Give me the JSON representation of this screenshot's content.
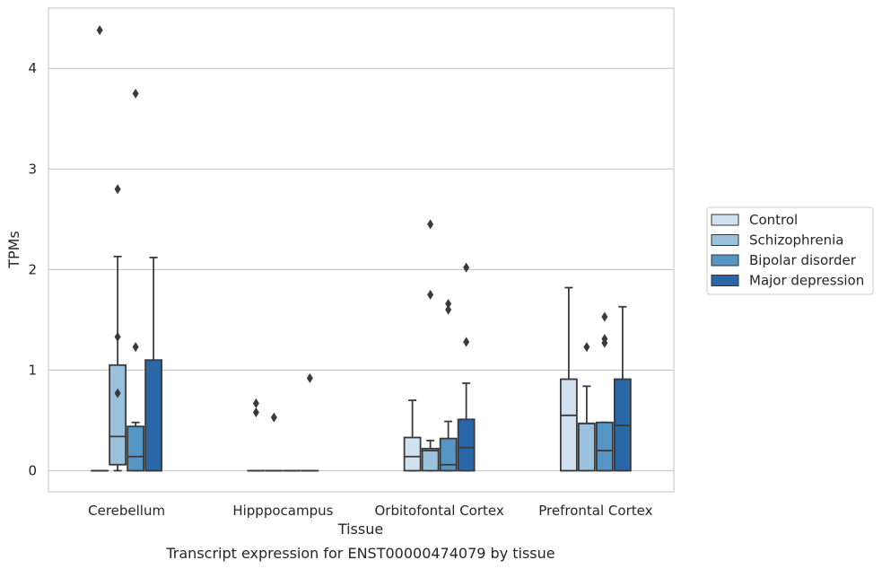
{
  "chart_data": {
    "type": "box",
    "title": "",
    "caption": "Transcript expression for ENST00000474079 by tissue",
    "xlabel": "Tissue",
    "ylabel": "TPMs",
    "ylim": [
      -0.21,
      4.6
    ],
    "yticks": [
      0,
      1,
      2,
      3,
      4
    ],
    "grid": "horizontal",
    "legend_placement": "right",
    "categories": [
      "Cerebellum",
      "Hipppocampus",
      "Orbitofontal Cortex",
      "Prefrontal Cortex"
    ],
    "series": [
      {
        "name": "Control",
        "color": "#d1e1f0",
        "boxes": [
          {
            "q1": 0,
            "median": 0,
            "q3": 0,
            "whisker_low": 0,
            "whisker_high": 0,
            "outliers": [
              4.38
            ]
          },
          {
            "q1": 0,
            "median": 0,
            "q3": 0,
            "whisker_low": 0,
            "whisker_high": 0,
            "outliers": [
              0.67,
              0.58
            ]
          },
          {
            "q1": 0,
            "median": 0.14,
            "q3": 0.33,
            "whisker_low": 0,
            "whisker_high": 0.7,
            "outliers": []
          },
          {
            "q1": 0,
            "median": 0.55,
            "q3": 0.91,
            "whisker_low": 0,
            "whisker_high": 1.82,
            "outliers": []
          }
        ]
      },
      {
        "name": "Schizophrenia",
        "color": "#9bc2dc",
        "boxes": [
          {
            "q1": 0.06,
            "median": 0.34,
            "q3": 1.05,
            "whisker_low": 0,
            "whisker_high": 2.13,
            "outliers": [
              2.8,
              1.33,
              0.77
            ]
          },
          {
            "q1": 0,
            "median": 0,
            "q3": 0,
            "whisker_low": 0,
            "whisker_high": 0,
            "outliers": [
              0.53
            ]
          },
          {
            "q1": 0,
            "median": 0.2,
            "q3": 0.22,
            "whisker_low": 0,
            "whisker_high": 0.3,
            "outliers": [
              2.45,
              1.75
            ]
          },
          {
            "q1": 0,
            "median": 0.47,
            "q3": 0.47,
            "whisker_low": 0,
            "whisker_high": 0.84,
            "outliers": [
              1.23
            ]
          }
        ]
      },
      {
        "name": "Bipolar disorder",
        "color": "#5596c4",
        "boxes": [
          {
            "q1": 0,
            "median": 0.14,
            "q3": 0.44,
            "whisker_low": 0,
            "whisker_high": 0.48,
            "outliers": [
              3.75,
              1.23
            ]
          },
          {
            "q1": 0,
            "median": 0,
            "q3": 0,
            "whisker_low": 0,
            "whisker_high": 0,
            "outliers": []
          },
          {
            "q1": 0,
            "median": 0.06,
            "q3": 0.32,
            "whisker_low": 0,
            "whisker_high": 0.49,
            "outliers": [
              1.66,
              1.6
            ]
          },
          {
            "q1": 0,
            "median": 0.2,
            "q3": 0.48,
            "whisker_low": 0,
            "whisker_high": 0.48,
            "outliers": [
              1.53,
              1.31,
              1.27
            ]
          }
        ]
      },
      {
        "name": "Major depression",
        "color": "#2967a8",
        "boxes": [
          {
            "q1": 0,
            "median": 0,
            "q3": 1.1,
            "whisker_low": 0,
            "whisker_high": 2.12,
            "outliers": []
          },
          {
            "q1": 0,
            "median": 0,
            "q3": 0,
            "whisker_low": 0,
            "whisker_high": 0,
            "outliers": [
              0.92
            ]
          },
          {
            "q1": 0,
            "median": 0.23,
            "q3": 0.51,
            "whisker_low": 0,
            "whisker_high": 0.87,
            "outliers": [
              2.02,
              1.28
            ]
          },
          {
            "q1": 0,
            "median": 0.45,
            "q3": 0.91,
            "whisker_low": 0,
            "whisker_high": 1.63,
            "outliers": []
          }
        ]
      }
    ]
  }
}
